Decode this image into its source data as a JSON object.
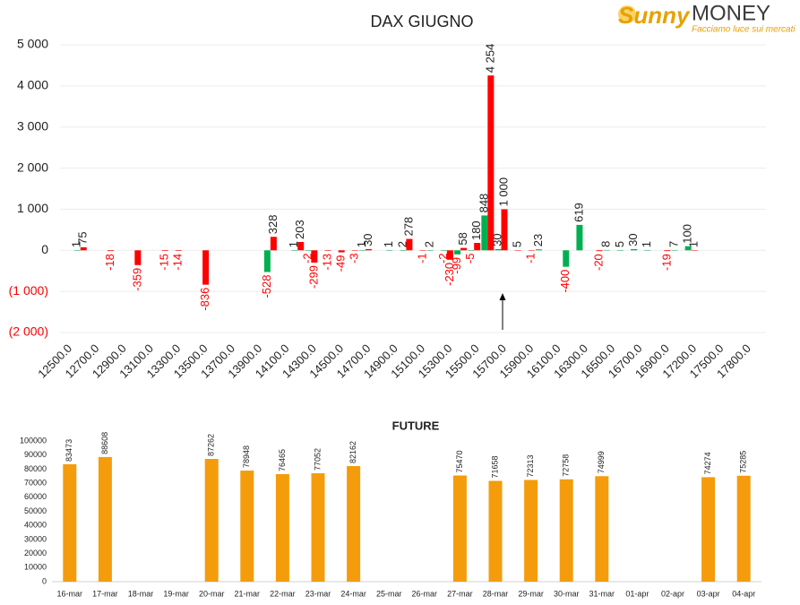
{
  "logo": {
    "name1": "Sunny",
    "name2": "MONEY",
    "tagline": "Facciamo luce sui mercati"
  },
  "chart_data": [
    {
      "type": "bar",
      "title": "DAX GIUGNO",
      "categories": [
        "12500.0",
        null,
        "12700.0",
        null,
        "12900.0",
        null,
        "13100.0",
        null,
        "13300.0",
        null,
        "13500.0",
        null,
        "13700.0",
        null,
        "13900.0",
        null,
        "14100.0",
        null,
        "14300.0",
        null,
        "14500.0",
        null,
        "14700.0",
        null,
        "14900.0",
        null,
        "15100.0",
        null,
        "15300.0",
        null,
        "15500.0",
        null,
        "15700.0",
        null,
        "15900.0",
        null,
        "16100.0",
        null,
        "16300.0",
        null,
        "16500.0",
        null,
        "16700.0",
        null,
        "16900.0",
        null,
        "17200.0",
        null,
        "17500.0",
        null,
        "17800.0",
        null
      ],
      "series": [
        {
          "color": "#00b050",
          "values": [
            null,
            1,
            null,
            null,
            null,
            null,
            null,
            null,
            null,
            null,
            null,
            null,
            null,
            null,
            null,
            -528,
            null,
            1,
            -2,
            null,
            null,
            null,
            1,
            null,
            1,
            2,
            null,
            2,
            -2,
            -99,
            -5,
            848,
            30,
            null,
            null,
            23,
            null,
            -400,
            619,
            null,
            8,
            5,
            30,
            1,
            null,
            7,
            100,
            null,
            null,
            null,
            null,
            null
          ],
          "value_labels": [
            null,
            "1",
            null,
            null,
            null,
            null,
            null,
            null,
            null,
            null,
            null,
            null,
            null,
            null,
            null,
            "-528",
            null,
            "1",
            "-2",
            null,
            null,
            null,
            "1",
            null,
            "1",
            "2",
            null,
            "2",
            "-2",
            "-99",
            "-5",
            "848",
            "30",
            null,
            null,
            "23",
            null,
            "-400",
            "619",
            null,
            "8",
            "5",
            "30",
            "1",
            null,
            "7",
            "100",
            null,
            null,
            null,
            null,
            null
          ]
        },
        {
          "color": "#ff0000",
          "values": [
            null,
            75,
            null,
            -18,
            null,
            -359,
            null,
            -15,
            -14,
            null,
            -836,
            null,
            null,
            null,
            null,
            328,
            null,
            203,
            -299,
            -13,
            -49,
            -3,
            30,
            null,
            null,
            278,
            -1,
            null,
            -230,
            58,
            180,
            4254,
            1000,
            5,
            -1,
            null,
            null,
            null,
            null,
            -20,
            null,
            null,
            null,
            null,
            -19,
            null,
            1,
            null,
            null,
            null,
            null,
            null
          ],
          "value_labels": [
            null,
            "75",
            null,
            "-18",
            null,
            "-359",
            null,
            "-15",
            "-14",
            null,
            "-836",
            null,
            null,
            null,
            null,
            "328",
            null,
            "203",
            "-299",
            "-13",
            "-49",
            "-3",
            "30",
            null,
            null,
            "278",
            "-1",
            null,
            "-230",
            "58",
            "180",
            "4 254",
            "1 000",
            "5",
            "-1",
            null,
            null,
            null,
            null,
            "-20",
            null,
            null,
            null,
            null,
            "-19",
            null,
            "1",
            null,
            null,
            null,
            null,
            null
          ]
        }
      ],
      "ylim": [
        -2000,
        5000
      ],
      "yticks": [
        {
          "value": 5000,
          "label": "5 000"
        },
        {
          "value": 4000,
          "label": "4 000"
        },
        {
          "value": 3000,
          "label": "3 000"
        },
        {
          "value": 2000,
          "label": "2 000"
        },
        {
          "value": 1000,
          "label": "1 000"
        },
        0,
        {
          "value": -1000,
          "label": "(1 000)"
        },
        {
          "value": -2000,
          "label": "(2 000)"
        }
      ],
      "grid": true,
      "negative_color": "#ff0000"
    },
    {
      "type": "bar",
      "title": "FUTURE",
      "categories": [
        "16-mar",
        "17-mar",
        "18-mar",
        "19-mar",
        "20-mar",
        "21-mar",
        "22-mar",
        "23-mar",
        "24-mar",
        "25-mar",
        "26-mar",
        "27-mar",
        "28-mar",
        "29-mar",
        "30-mar",
        "31-mar",
        "01-apr",
        "02-apr",
        "03-apr",
        "04-apr"
      ],
      "values": [
        83473,
        88608,
        null,
        null,
        87262,
        78948,
        76465,
        77052,
        82162,
        null,
        null,
        75470,
        71658,
        72313,
        72758,
        74999,
        null,
        null,
        74274,
        75285
      ],
      "color": "#f59c0c",
      "ylim": [
        0,
        100000
      ],
      "yticks": [
        0,
        10000,
        20000,
        30000,
        40000,
        50000,
        60000,
        70000,
        80000,
        90000,
        100000
      ],
      "grid": false
    }
  ]
}
